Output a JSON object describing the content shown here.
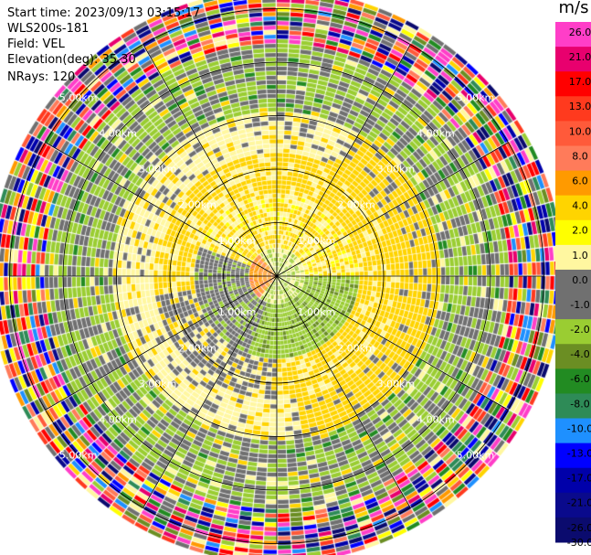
{
  "info": {
    "start_time": "Start time: 2023/09/13 03:15:17",
    "instrument": "WLS200s-181",
    "field": "Field: VEL",
    "elevation": "Elevation(deg): 35.30",
    "nrays": "NRays: 120"
  },
  "colorbar": {
    "unit": "m/s",
    "ticks": [
      "26.0",
      "21.0",
      "17.0",
      "13.0",
      "10.0",
      "8.0",
      "6.0",
      "4.0",
      "2.0",
      "1.0",
      "0.0",
      "-1.0",
      "-2.0",
      "-4.0",
      "-6.0",
      "-8.0",
      "-10.0",
      "-13.0",
      "-17.0",
      "-21.0",
      "-26.0",
      "-30.0"
    ],
    "colors": [
      "#ff3ec8",
      "#e8006e",
      "#ff0000",
      "#ff3a1e",
      "#ff5a3a",
      "#ff7b5a",
      "#ff9a00",
      "#ffd400",
      "#ffff00",
      "#fff7a0",
      "#707070",
      "#707070",
      "#9acd32",
      "#6b8e23",
      "#228b22",
      "#2e8b57",
      "#1e90ff",
      "#0000ff",
      "#0000aa",
      "#0a0a8c",
      "#0b0b6e"
    ]
  },
  "chart_data": {
    "type": "heatmap",
    "title": "",
    "field": "VEL",
    "units": "m/s",
    "range_rings_km": [
      1.0,
      2.0,
      3.0,
      4.0,
      5.0
    ],
    "ring_labels": [
      "1.00km",
      "2.00km",
      "3.00km",
      "4.00km",
      "5.00km"
    ],
    "nrays": 120,
    "max_range_km": 5.3,
    "spokes_deg": [
      0,
      30,
      60,
      90,
      120,
      150,
      180,
      210,
      240,
      270,
      300,
      330
    ],
    "value_range": [
      -30,
      26
    ],
    "regimes": [
      {
        "range_km": [
          0.0,
          0.45
        ],
        "description": "mixed near-zero, orange/green patch at center",
        "dominant_values_ms": [
          4.0,
          -4.0
        ]
      },
      {
        "range_km": [
          0.45,
          1.5
        ],
        "description": "southeast sector dark green, north sector yellow/gray",
        "dominant_values_ms": [
          -4.0,
          2.0,
          0.0
        ]
      },
      {
        "range_km": [
          1.5,
          2.3
        ],
        "description": "yellow band",
        "dominant_values_ms": [
          2.0
        ]
      },
      {
        "range_km": [
          2.3,
          3.0
        ],
        "description": "gray band with yellow to east",
        "dominant_values_ms": [
          0.0,
          2.0
        ]
      },
      {
        "range_km": [
          3.0,
          4.3
        ],
        "description": "olive/yellow-green ring",
        "dominant_values_ms": [
          -2.0,
          -4.0
        ]
      },
      {
        "range_km": [
          4.3,
          5.3
        ],
        "description": "noisy random colors (low SNR)",
        "dominant_values_ms": [
          26.0,
          21.0,
          13.0,
          -13.0,
          -17.0,
          -26.0
        ]
      }
    ]
  }
}
